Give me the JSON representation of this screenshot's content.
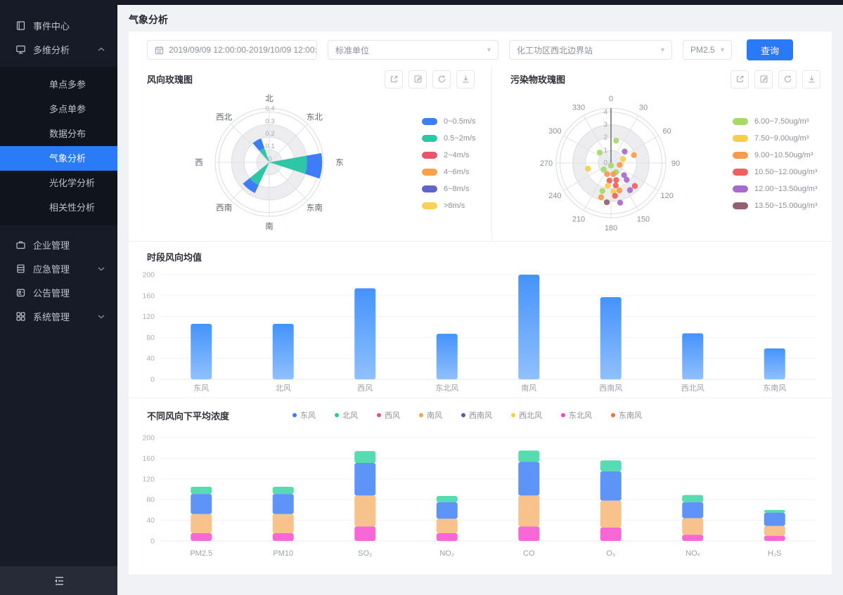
{
  "theme": {
    "sidebar_bg": "#171B27",
    "submenu_bg": "#10141D",
    "sidebar_active": "#2A7BF6",
    "sidebar_footer_bg": "#262B37",
    "page_bg": "#F0F2F5",
    "card_bg": "#FFFFFF",
    "primary": "#2979F8",
    "border": "#E3E6EB",
    "grid_line": "#F0F1F4",
    "text_dark": "#2E3238",
    "text_gray": "#8A9099",
    "axis_gray": "#A2A8B0"
  },
  "header": {
    "title": "气象分析"
  },
  "sidebar": {
    "top": [
      {
        "label": "事件中心"
      },
      {
        "label": "多维分析"
      }
    ],
    "submenu": {
      "items": [
        "单点多参",
        "多点单参",
        "数据分布",
        "气象分析",
        "光化学分析",
        "相关性分析"
      ],
      "active_index": 3
    },
    "bottom": [
      {
        "label": "企业管理"
      },
      {
        "label": "应急管理"
      },
      {
        "label": "公告管理"
      },
      {
        "label": "系统管理"
      }
    ]
  },
  "filters": {
    "date_range": "2019/09/09 12:00:00-2019/10/09 12:00:00",
    "unit": "标准单位",
    "station": "化工功区西北边界站",
    "pollutant": "PM2.5",
    "query_label": "查询"
  },
  "icons": {
    "sidebar": [
      "journal-icon",
      "monitor-icon",
      "briefcase-icon",
      "database-icon",
      "badge-icon",
      "grid-icon"
    ],
    "toolbar": [
      "external-link-icon",
      "edit-icon",
      "refresh-icon",
      "download-icon"
    ],
    "caret": "▾",
    "footer": "collapse-menu-icon"
  },
  "chart_data": [
    {
      "id": "wind_rose",
      "type": "rose",
      "title": "风向玫瑰图",
      "directions": [
        "北",
        "东北",
        "东",
        "东南",
        "南",
        "西南",
        "西",
        "西北"
      ],
      "radial_ticks": [
        0,
        0.1,
        0.2,
        0.3,
        0.4
      ],
      "max_r": 0.43,
      "legend": [
        {
          "label": "0~0.5m/s",
          "color": "#3E7DF7"
        },
        {
          "label": "0.5~2m/s",
          "color": "#2EC7A5"
        },
        {
          "label": "2~4m/s",
          "color": "#E8566C"
        },
        {
          "label": "4~6m/s",
          "color": "#F8A14B"
        },
        {
          "label": "6~8m/s",
          "color": "#6065C9"
        },
        {
          "label": ">8m/s",
          "color": "#F8D254"
        }
      ],
      "wedges": [
        {
          "center_deg": 94,
          "half_width_deg": 14,
          "segments": [
            {
              "color": "#2EC7A5",
              "from": 0,
              "to": 0.3
            },
            {
              "color": "#3E7DF7",
              "from": 0.3,
              "to": 0.42
            }
          ]
        },
        {
          "center_deg": 218,
          "half_width_deg": 13,
          "segments": [
            {
              "color": "#2EC7A5",
              "from": 0,
              "to": 0.2
            },
            {
              "color": "#3E7DF7",
              "from": 0.2,
              "to": 0.27
            }
          ]
        },
        {
          "center_deg": 330,
          "half_width_deg": 11,
          "segments": [
            {
              "color": "#2EC7A5",
              "from": 0,
              "to": 0.12
            },
            {
              "color": "#3E7DF7",
              "from": 0.12,
              "to": 0.2
            }
          ]
        }
      ]
    },
    {
      "id": "pollutant_rose",
      "type": "polar-scatter",
      "title": "污染物玫瑰图",
      "angle_ticks": [
        0,
        30,
        60,
        90,
        120,
        150,
        180,
        210,
        240,
        270,
        300,
        330
      ],
      "radial_ticks": [
        0,
        1,
        2,
        3,
        4
      ],
      "max_r": 4.3,
      "legend": [
        {
          "label": "6.00~7.50ug/m³",
          "color": "#A6D96B"
        },
        {
          "label": "7.50~9.00ug/m³",
          "color": "#F7CE4A"
        },
        {
          "label": "9.00~10.50ug/m³",
          "color": "#F69B4E"
        },
        {
          "label": "10.50~12.00ug/m³",
          "color": "#F15E5E"
        },
        {
          "label": "12.00~13.50ug/m³",
          "color": "#A76BCB"
        },
        {
          "label": "13.50~15.00ug/m³",
          "color": "#92606E"
        }
      ],
      "point_colors": [
        "#A6D96B",
        "#F7CE4A",
        "#F69B4E",
        "#F15E5E",
        "#A76BCB",
        "#92606E"
      ],
      "points": [
        [
          13,
          1.8,
          0
        ],
        [
          313,
          1.2,
          0
        ],
        [
          50,
          1.4,
          4
        ],
        [
          71,
          1.9,
          2
        ],
        [
          72,
          1.0,
          1
        ],
        [
          180,
          0.2,
          0
        ],
        [
          102,
          0.7,
          2
        ],
        [
          256,
          1.85,
          1
        ],
        [
          228,
          0.76,
          0
        ],
        [
          151,
          0.82,
          0
        ],
        [
          199,
          0.92,
          2
        ],
        [
          168,
          0.89,
          2
        ],
        [
          133,
          1.4,
          4
        ],
        [
          185,
          1.39,
          3
        ],
        [
          163,
          1.4,
          3
        ],
        [
          137,
          1.8,
          4
        ],
        [
          188,
          1.8,
          1
        ],
        [
          168,
          1.8,
          3
        ],
        [
          163,
          2.25,
          2
        ],
        [
          134,
          2.6,
          3
        ],
        [
          145,
          2.6,
          4
        ],
        [
          175,
          2.25,
          1
        ],
        [
          197,
          2.3,
          0
        ],
        [
          196,
          2.8,
          2
        ],
        [
          173,
          2.6,
          3
        ],
        [
          186,
          3.1,
          5
        ],
        [
          167,
          3.2,
          4
        ]
      ]
    },
    {
      "id": "wind_avg",
      "type": "bar",
      "title": "时段风向均值",
      "categories": [
        "东风",
        "北风",
        "西风",
        "东北风",
        "南风",
        "西南风",
        "西北风",
        "东南风"
      ],
      "values": [
        106,
        106,
        174,
        87,
        200,
        157,
        88,
        59
      ],
      "ylim": [
        0,
        200
      ],
      "yticks": [
        0,
        40,
        80,
        120,
        160,
        200
      ],
      "bar_color_top": "#4493FB",
      "bar_color_bottom": "#90C0FD"
    },
    {
      "id": "conc_by_wind",
      "type": "stacked-bar",
      "title": "不同风向下平均浓度",
      "legend": [
        {
          "label": "东风",
          "color": "#3E7DF7"
        },
        {
          "label": "北风",
          "color": "#2EC7A5"
        },
        {
          "label": "西风",
          "color": "#E8566C"
        },
        {
          "label": "南风",
          "color": "#F8A447"
        },
        {
          "label": "西南风",
          "color": "#5458C8"
        },
        {
          "label": "西北风",
          "color": "#F7CE4A"
        },
        {
          "label": "东北风",
          "color": "#EA4ACF"
        },
        {
          "label": "东南风",
          "color": "#F2703B"
        }
      ],
      "categories": [
        "PM2.5",
        "PM10",
        "SO₂",
        "NO₂",
        "CO",
        "O₃",
        "NOₓ",
        "H₂S"
      ],
      "series": [
        {
          "name": "东北风",
          "color": "#F767D6",
          "values": [
            15,
            15,
            28,
            15,
            28,
            26,
            12,
            10
          ]
        },
        {
          "name": "南风",
          "color": "#F7C28C",
          "values": [
            37,
            37,
            60,
            28,
            60,
            52,
            32,
            19
          ]
        },
        {
          "name": "东风",
          "color": "#5E93F8",
          "values": [
            39,
            39,
            63,
            32,
            65,
            57,
            31,
            26
          ]
        },
        {
          "name": "北风",
          "color": "#55DCB0",
          "values": [
            14,
            14,
            23,
            12,
            22,
            21,
            14,
            5
          ]
        }
      ],
      "ylim": [
        0,
        200
      ],
      "yticks": [
        0,
        40,
        80,
        120,
        160,
        200
      ]
    }
  ]
}
